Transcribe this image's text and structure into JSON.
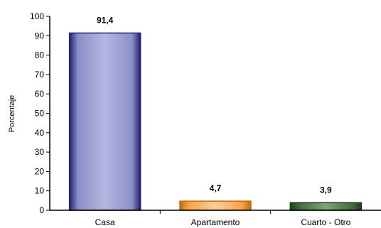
{
  "chart_data": {
    "type": "bar",
    "ylabel": "Porcentaje",
    "xlabel": "",
    "ylim": [
      0,
      100
    ],
    "yticks": [
      0,
      10,
      20,
      30,
      40,
      50,
      60,
      70,
      80,
      90,
      100
    ],
    "categories": [
      "Casa",
      "Apartamento",
      "Cuarto - Otro"
    ],
    "values": [
      91.4,
      4.7,
      3.9
    ],
    "data_labels": [
      "91,4",
      "4,7",
      "3,9"
    ],
    "bar_colors": [
      {
        "fill": "#8c8fc9",
        "light": "#b5b7e0",
        "edge": "#1f2270"
      },
      {
        "fill": "#f6a348",
        "light": "#fbd09a",
        "edge": "#c46a10"
      },
      {
        "fill": "#3f6a3c",
        "light": "#7fa57a",
        "edge": "#1e3a1c"
      }
    ],
    "grid": false,
    "legend": "none"
  }
}
